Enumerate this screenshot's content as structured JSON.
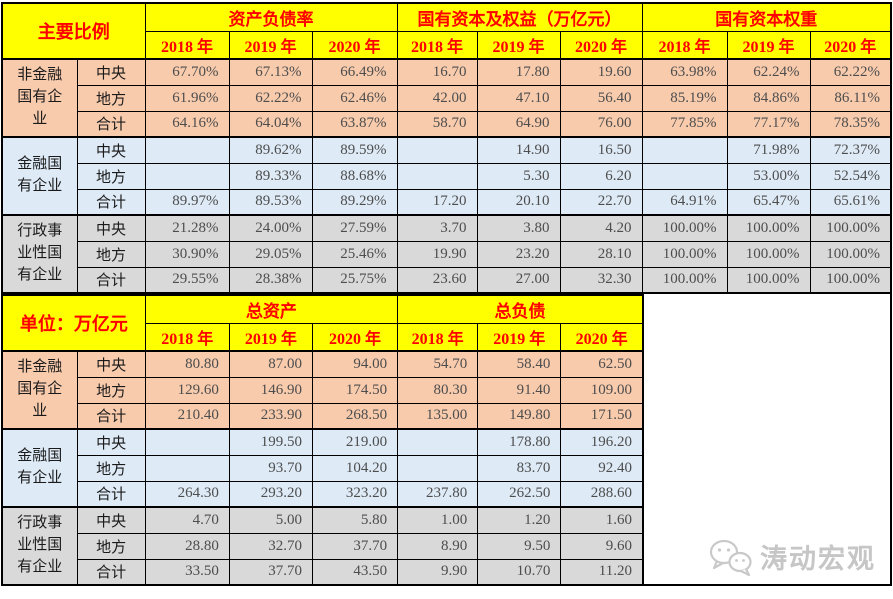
{
  "colors": {
    "header_bg": "#FFFF00",
    "header_text": "#FF0000",
    "nonfinancial_bg": "#F8CBAD",
    "financial_bg": "#DEEBF7",
    "administrative_bg": "#D9D9D9",
    "border": "#000000",
    "value_text": "#4D4D4D"
  },
  "watermark": {
    "text": "涛动宏观",
    "icon": "wechat-chat-bubbles"
  },
  "chart_data": [
    {
      "type": "table",
      "title": "主要比例",
      "column_groups": [
        "资产负债率",
        "国有资本及权益（万亿元）",
        "国有资本权重"
      ],
      "years": [
        "2018 年",
        "2019 年",
        "2020 年"
      ],
      "row_groups": [
        {
          "label": "非金融\n国有企\n业",
          "color": "#F8CBAD",
          "rows": [
            {
              "label": "中央",
              "values": [
                "67.70%",
                "67.13%",
                "66.49%",
                "16.70",
                "17.80",
                "19.60",
                "63.98%",
                "62.24%",
                "62.22%"
              ]
            },
            {
              "label": "地方",
              "values": [
                "61.96%",
                "62.22%",
                "62.46%",
                "42.00",
                "47.10",
                "56.40",
                "85.19%",
                "84.86%",
                "86.11%"
              ]
            },
            {
              "label": "合计",
              "values": [
                "64.16%",
                "64.04%",
                "63.87%",
                "58.70",
                "64.90",
                "76.00",
                "77.85%",
                "77.17%",
                "78.35%"
              ]
            }
          ]
        },
        {
          "label": "金融国\n有企业",
          "color": "#DEEBF7",
          "rows": [
            {
              "label": "中央",
              "values": [
                "",
                "89.62%",
                "89.59%",
                "",
                "14.90",
                "16.50",
                "",
                "71.98%",
                "72.37%"
              ]
            },
            {
              "label": "地方",
              "values": [
                "",
                "89.33%",
                "88.68%",
                "",
                "5.30",
                "6.20",
                "",
                "53.00%",
                "52.54%"
              ]
            },
            {
              "label": "合计",
              "values": [
                "89.97%",
                "89.53%",
                "89.29%",
                "17.20",
                "20.10",
                "22.70",
                "64.91%",
                "65.47%",
                "65.61%"
              ]
            }
          ]
        },
        {
          "label": "行政事\n业性国\n有企业",
          "color": "#D9D9D9",
          "rows": [
            {
              "label": "中央",
              "values": [
                "21.28%",
                "24.00%",
                "27.59%",
                "3.70",
                "3.80",
                "4.20",
                "100.00%",
                "100.00%",
                "100.00%"
              ]
            },
            {
              "label": "地方",
              "values": [
                "30.90%",
                "29.05%",
                "25.46%",
                "19.90",
                "23.20",
                "28.10",
                "100.00%",
                "100.00%",
                "100.00%"
              ]
            },
            {
              "label": "合计",
              "values": [
                "29.55%",
                "28.38%",
                "25.75%",
                "23.60",
                "27.00",
                "32.30",
                "100.00%",
                "100.00%",
                "100.00%"
              ]
            }
          ]
        }
      ]
    },
    {
      "type": "table",
      "title": "单位：万亿元",
      "column_groups": [
        "总资产",
        "总负债"
      ],
      "years": [
        "2018 年",
        "2019 年",
        "2020 年"
      ],
      "row_groups": [
        {
          "label": "非金融\n国有企\n业",
          "color": "#F8CBAD",
          "rows": [
            {
              "label": "中央",
              "values": [
                "80.80",
                "87.00",
                "94.00",
                "54.70",
                "58.40",
                "62.50"
              ]
            },
            {
              "label": "地方",
              "values": [
                "129.60",
                "146.90",
                "174.50",
                "80.30",
                "91.40",
                "109.00"
              ]
            },
            {
              "label": "合计",
              "values": [
                "210.40",
                "233.90",
                "268.50",
                "135.00",
                "149.80",
                "171.50"
              ]
            }
          ]
        },
        {
          "label": "金融国\n有企业",
          "color": "#DEEBF7",
          "rows": [
            {
              "label": "中央",
              "values": [
                "",
                "199.50",
                "219.00",
                "",
                "178.80",
                "196.20"
              ]
            },
            {
              "label": "地方",
              "values": [
                "",
                "93.70",
                "104.20",
                "",
                "83.70",
                "92.40"
              ]
            },
            {
              "label": "合计",
              "values": [
                "264.30",
                "293.20",
                "323.20",
                "237.80",
                "262.50",
                "288.60"
              ]
            }
          ]
        },
        {
          "label": "行政事\n业性国\n有企业",
          "color": "#D9D9D9",
          "rows": [
            {
              "label": "中央",
              "values": [
                "4.70",
                "5.00",
                "5.80",
                "1.00",
                "1.20",
                "1.60"
              ]
            },
            {
              "label": "地方",
              "values": [
                "28.80",
                "32.70",
                "37.70",
                "8.90",
                "9.50",
                "9.60"
              ]
            },
            {
              "label": "合计",
              "values": [
                "33.50",
                "37.70",
                "43.50",
                "9.90",
                "10.70",
                "11.20"
              ]
            }
          ]
        }
      ]
    }
  ]
}
